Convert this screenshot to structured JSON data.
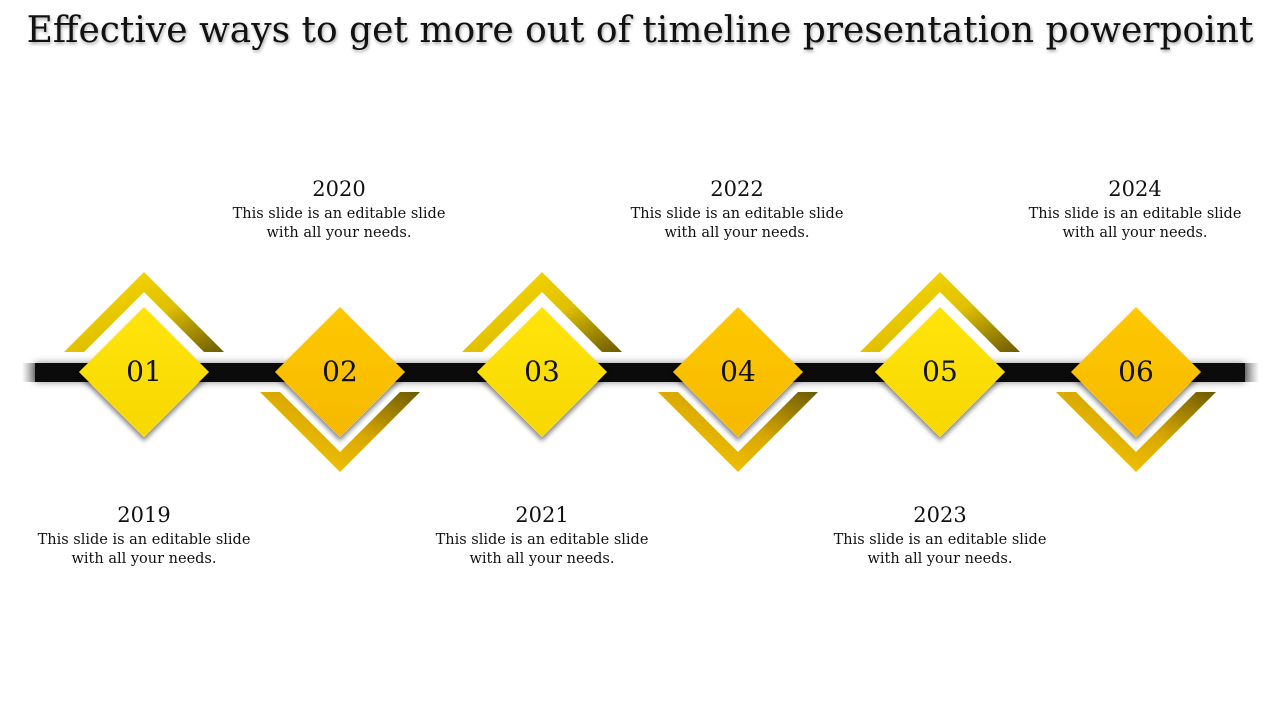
{
  "title": "Effective ways to get more out of timeline presentation powerpoint",
  "colors": {
    "yellow_a": "#ffe000",
    "yellow_b": "#ffc400",
    "bar": "#0b0b0b",
    "chevron_dark": "#6b5a00"
  },
  "milestones": [
    {
      "num": "01",
      "year": "2019",
      "text": "This slide is an editable slide with all your needs."
    },
    {
      "num": "02",
      "year": "2020",
      "text": "This slide is an editable slide with all your needs."
    },
    {
      "num": "03",
      "year": "2021",
      "text": "This slide is an editable slide with all your needs."
    },
    {
      "num": "04",
      "year": "2022",
      "text": "This slide is an editable slide with all your needs."
    },
    {
      "num": "05",
      "year": "2023",
      "text": "This slide is an editable slide with all your needs."
    },
    {
      "num": "06",
      "year": "2024",
      "text": "This slide is an editable slide with all your needs."
    }
  ]
}
